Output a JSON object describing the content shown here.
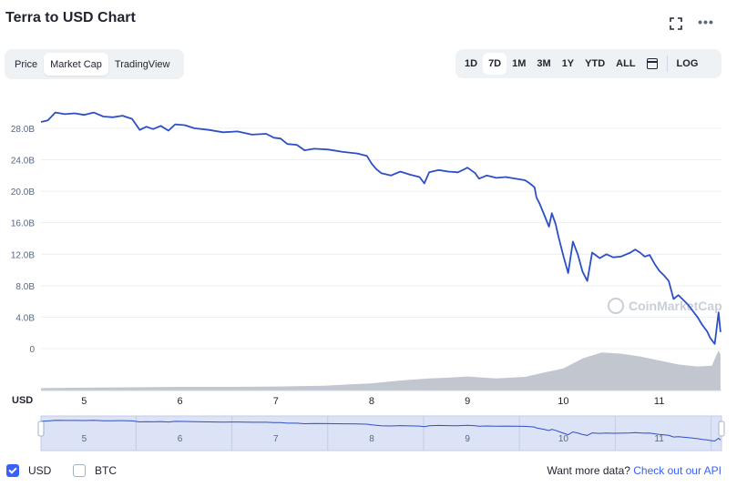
{
  "header": {
    "title": "Terra to USD Chart",
    "more_label": "•••"
  },
  "tabs": [
    {
      "label": "Price",
      "active": false
    },
    {
      "label": "Market Cap",
      "active": true
    },
    {
      "label": "TradingView",
      "active": false
    }
  ],
  "ranges": [
    {
      "label": "1D",
      "active": false
    },
    {
      "label": "7D",
      "active": true
    },
    {
      "label": "1M",
      "active": false
    },
    {
      "label": "3M",
      "active": false
    },
    {
      "label": "1Y",
      "active": false
    },
    {
      "label": "YTD",
      "active": false
    },
    {
      "label": "ALL",
      "active": false
    }
  ],
  "log_label": "LOG",
  "footer": {
    "usd_label": "USD",
    "btc_label": "BTC",
    "usd_checked": true,
    "btc_checked": false,
    "more_data_text": "Want more data?",
    "api_link": "Check out our API"
  },
  "colors": {
    "line": "#2d4fc4",
    "volume": "#b7bdc7",
    "accent": "#3861fb"
  },
  "chart_data": {
    "type": "line",
    "watermark": "CoinMarketCap",
    "currency_label": "USD",
    "ylim": [
      0,
      31000000000
    ],
    "y_ticks": [
      {
        "value": 0,
        "label": "0"
      },
      {
        "value": 4000000000,
        "label": "4.0B"
      },
      {
        "value": 8000000000,
        "label": "8.0B"
      },
      {
        "value": 12000000000,
        "label": "12.0B"
      },
      {
        "value": 16000000000,
        "label": "16.0B"
      },
      {
        "value": 20000000000,
        "label": "20.0B"
      },
      {
        "value": 24000000000,
        "label": "24.0B"
      },
      {
        "value": 28000000000,
        "label": "28.0B"
      }
    ],
    "xlim": [
      4.55,
      11.65
    ],
    "x_ticks": [
      {
        "value": 5,
        "label": "5"
      },
      {
        "value": 6,
        "label": "6"
      },
      {
        "value": 7,
        "label": "7"
      },
      {
        "value": 8,
        "label": "8"
      },
      {
        "value": 9,
        "label": "9"
      },
      {
        "value": 10,
        "label": "10"
      },
      {
        "value": 11,
        "label": "11"
      }
    ],
    "series": [
      {
        "name": "USD",
        "x": [
          4.55,
          4.62,
          4.7,
          4.8,
          4.9,
          5.0,
          5.1,
          5.2,
          5.3,
          5.4,
          5.5,
          5.58,
          5.65,
          5.72,
          5.8,
          5.88,
          5.95,
          6.05,
          6.15,
          6.3,
          6.45,
          6.6,
          6.75,
          6.9,
          6.98,
          7.05,
          7.12,
          7.22,
          7.3,
          7.4,
          7.55,
          7.7,
          7.85,
          7.95,
          8.0,
          8.05,
          8.1,
          8.2,
          8.3,
          8.4,
          8.5,
          8.55,
          8.6,
          8.7,
          8.8,
          8.9,
          9.0,
          9.08,
          9.12,
          9.2,
          9.3,
          9.4,
          9.5,
          9.6,
          9.65,
          9.7,
          9.72,
          9.75,
          9.8,
          9.85,
          9.88,
          9.92,
          9.95,
          10.0,
          10.05,
          10.1,
          10.15,
          10.2,
          10.25,
          10.3,
          10.38,
          10.45,
          10.52,
          10.6,
          10.7,
          10.75,
          10.8,
          10.85,
          10.9,
          10.95,
          11.0,
          11.05,
          11.1,
          11.15,
          11.2,
          11.25,
          11.3,
          11.35,
          11.4,
          11.45,
          11.5,
          11.53,
          11.56,
          11.58,
          11.6,
          11.62,
          11.64
        ],
        "values": [
          28800000000,
          29000000000,
          30000000000,
          29800000000,
          29900000000,
          29700000000,
          30000000000,
          29500000000,
          29400000000,
          29600000000,
          29200000000,
          27800000000,
          28200000000,
          27900000000,
          28300000000,
          27700000000,
          28500000000,
          28400000000,
          28000000000,
          27800000000,
          27500000000,
          27600000000,
          27200000000,
          27300000000,
          26800000000,
          26700000000,
          26000000000,
          25900000000,
          25200000000,
          25400000000,
          25300000000,
          25000000000,
          24800000000,
          24500000000,
          23500000000,
          22800000000,
          22300000000,
          22000000000,
          22500000000,
          22100000000,
          21800000000,
          21000000000,
          22400000000,
          22700000000,
          22500000000,
          22400000000,
          23000000000,
          22300000000,
          21600000000,
          22000000000,
          21700000000,
          21800000000,
          21600000000,
          21400000000,
          21000000000,
          20500000000,
          19200000000,
          18500000000,
          17000000000,
          15500000000,
          17200000000,
          15800000000,
          14200000000,
          11800000000,
          9600000000,
          13600000000,
          12000000000,
          9800000000,
          8600000000,
          12200000000,
          11500000000,
          12000000000,
          11600000000,
          11700000000,
          12200000000,
          12600000000,
          12200000000,
          11700000000,
          11900000000,
          10800000000,
          9900000000,
          9300000000,
          8600000000,
          6300000000,
          6800000000,
          6200000000,
          5600000000,
          4800000000,
          4000000000,
          3000000000,
          2200000000,
          1400000000,
          900000000,
          600000000,
          2600000000,
          4600000000,
          2100000000
        ]
      }
    ],
    "volume": {
      "name": "Volume",
      "x": [
        4.55,
        5.0,
        5.5,
        6.0,
        6.5,
        7.0,
        7.5,
        8.0,
        8.3,
        8.6,
        8.8,
        9.0,
        9.3,
        9.6,
        9.8,
        10.0,
        10.2,
        10.4,
        10.6,
        10.8,
        11.0,
        11.2,
        11.4,
        11.55,
        11.6,
        11.62,
        11.64
      ],
      "values": [
        0.06,
        0.07,
        0.08,
        0.09,
        0.09,
        0.1,
        0.12,
        0.18,
        0.25,
        0.3,
        0.32,
        0.35,
        0.3,
        0.34,
        0.45,
        0.55,
        0.8,
        0.95,
        0.92,
        0.85,
        0.75,
        0.65,
        0.6,
        0.62,
        0.9,
        1.0,
        0.9
      ]
    },
    "navigator": {
      "x_ticks": [
        {
          "value": 5,
          "label": "5"
        },
        {
          "value": 6,
          "label": "6"
        },
        {
          "value": 7,
          "label": "7"
        },
        {
          "value": 8,
          "label": "8"
        },
        {
          "value": 9,
          "label": "9"
        },
        {
          "value": 10,
          "label": "10"
        },
        {
          "value": 11,
          "label": "11"
        }
      ]
    },
    "grid": true,
    "legend": "bottom-left"
  }
}
